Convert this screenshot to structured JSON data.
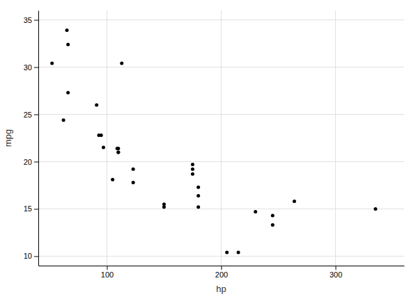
{
  "chart_data": {
    "type": "scatter",
    "x": [
      110,
      110,
      93,
      110,
      175,
      105,
      245,
      62,
      95,
      123,
      123,
      180,
      180,
      180,
      205,
      215,
      230,
      66,
      52,
      65,
      97,
      150,
      150,
      245,
      175,
      66,
      91,
      113,
      264,
      175,
      335,
      109
    ],
    "values": [
      21.0,
      21.0,
      22.8,
      21.4,
      18.7,
      18.1,
      14.3,
      24.4,
      22.8,
      19.2,
      17.8,
      16.4,
      17.3,
      15.2,
      10.4,
      10.4,
      14.7,
      32.4,
      30.4,
      33.9,
      21.5,
      15.5,
      15.2,
      13.3,
      19.2,
      27.3,
      26.0,
      30.4,
      15.8,
      19.7,
      15.0,
      21.4
    ],
    "xlabel": "hp",
    "ylabel": "mpg",
    "xlim": [
      40,
      360
    ],
    "ylim": [
      9,
      36
    ],
    "xticks": [
      100,
      200,
      300
    ],
    "yticks": [
      10,
      15,
      20,
      25,
      30,
      35
    ],
    "grid": true,
    "color": "#000000"
  }
}
